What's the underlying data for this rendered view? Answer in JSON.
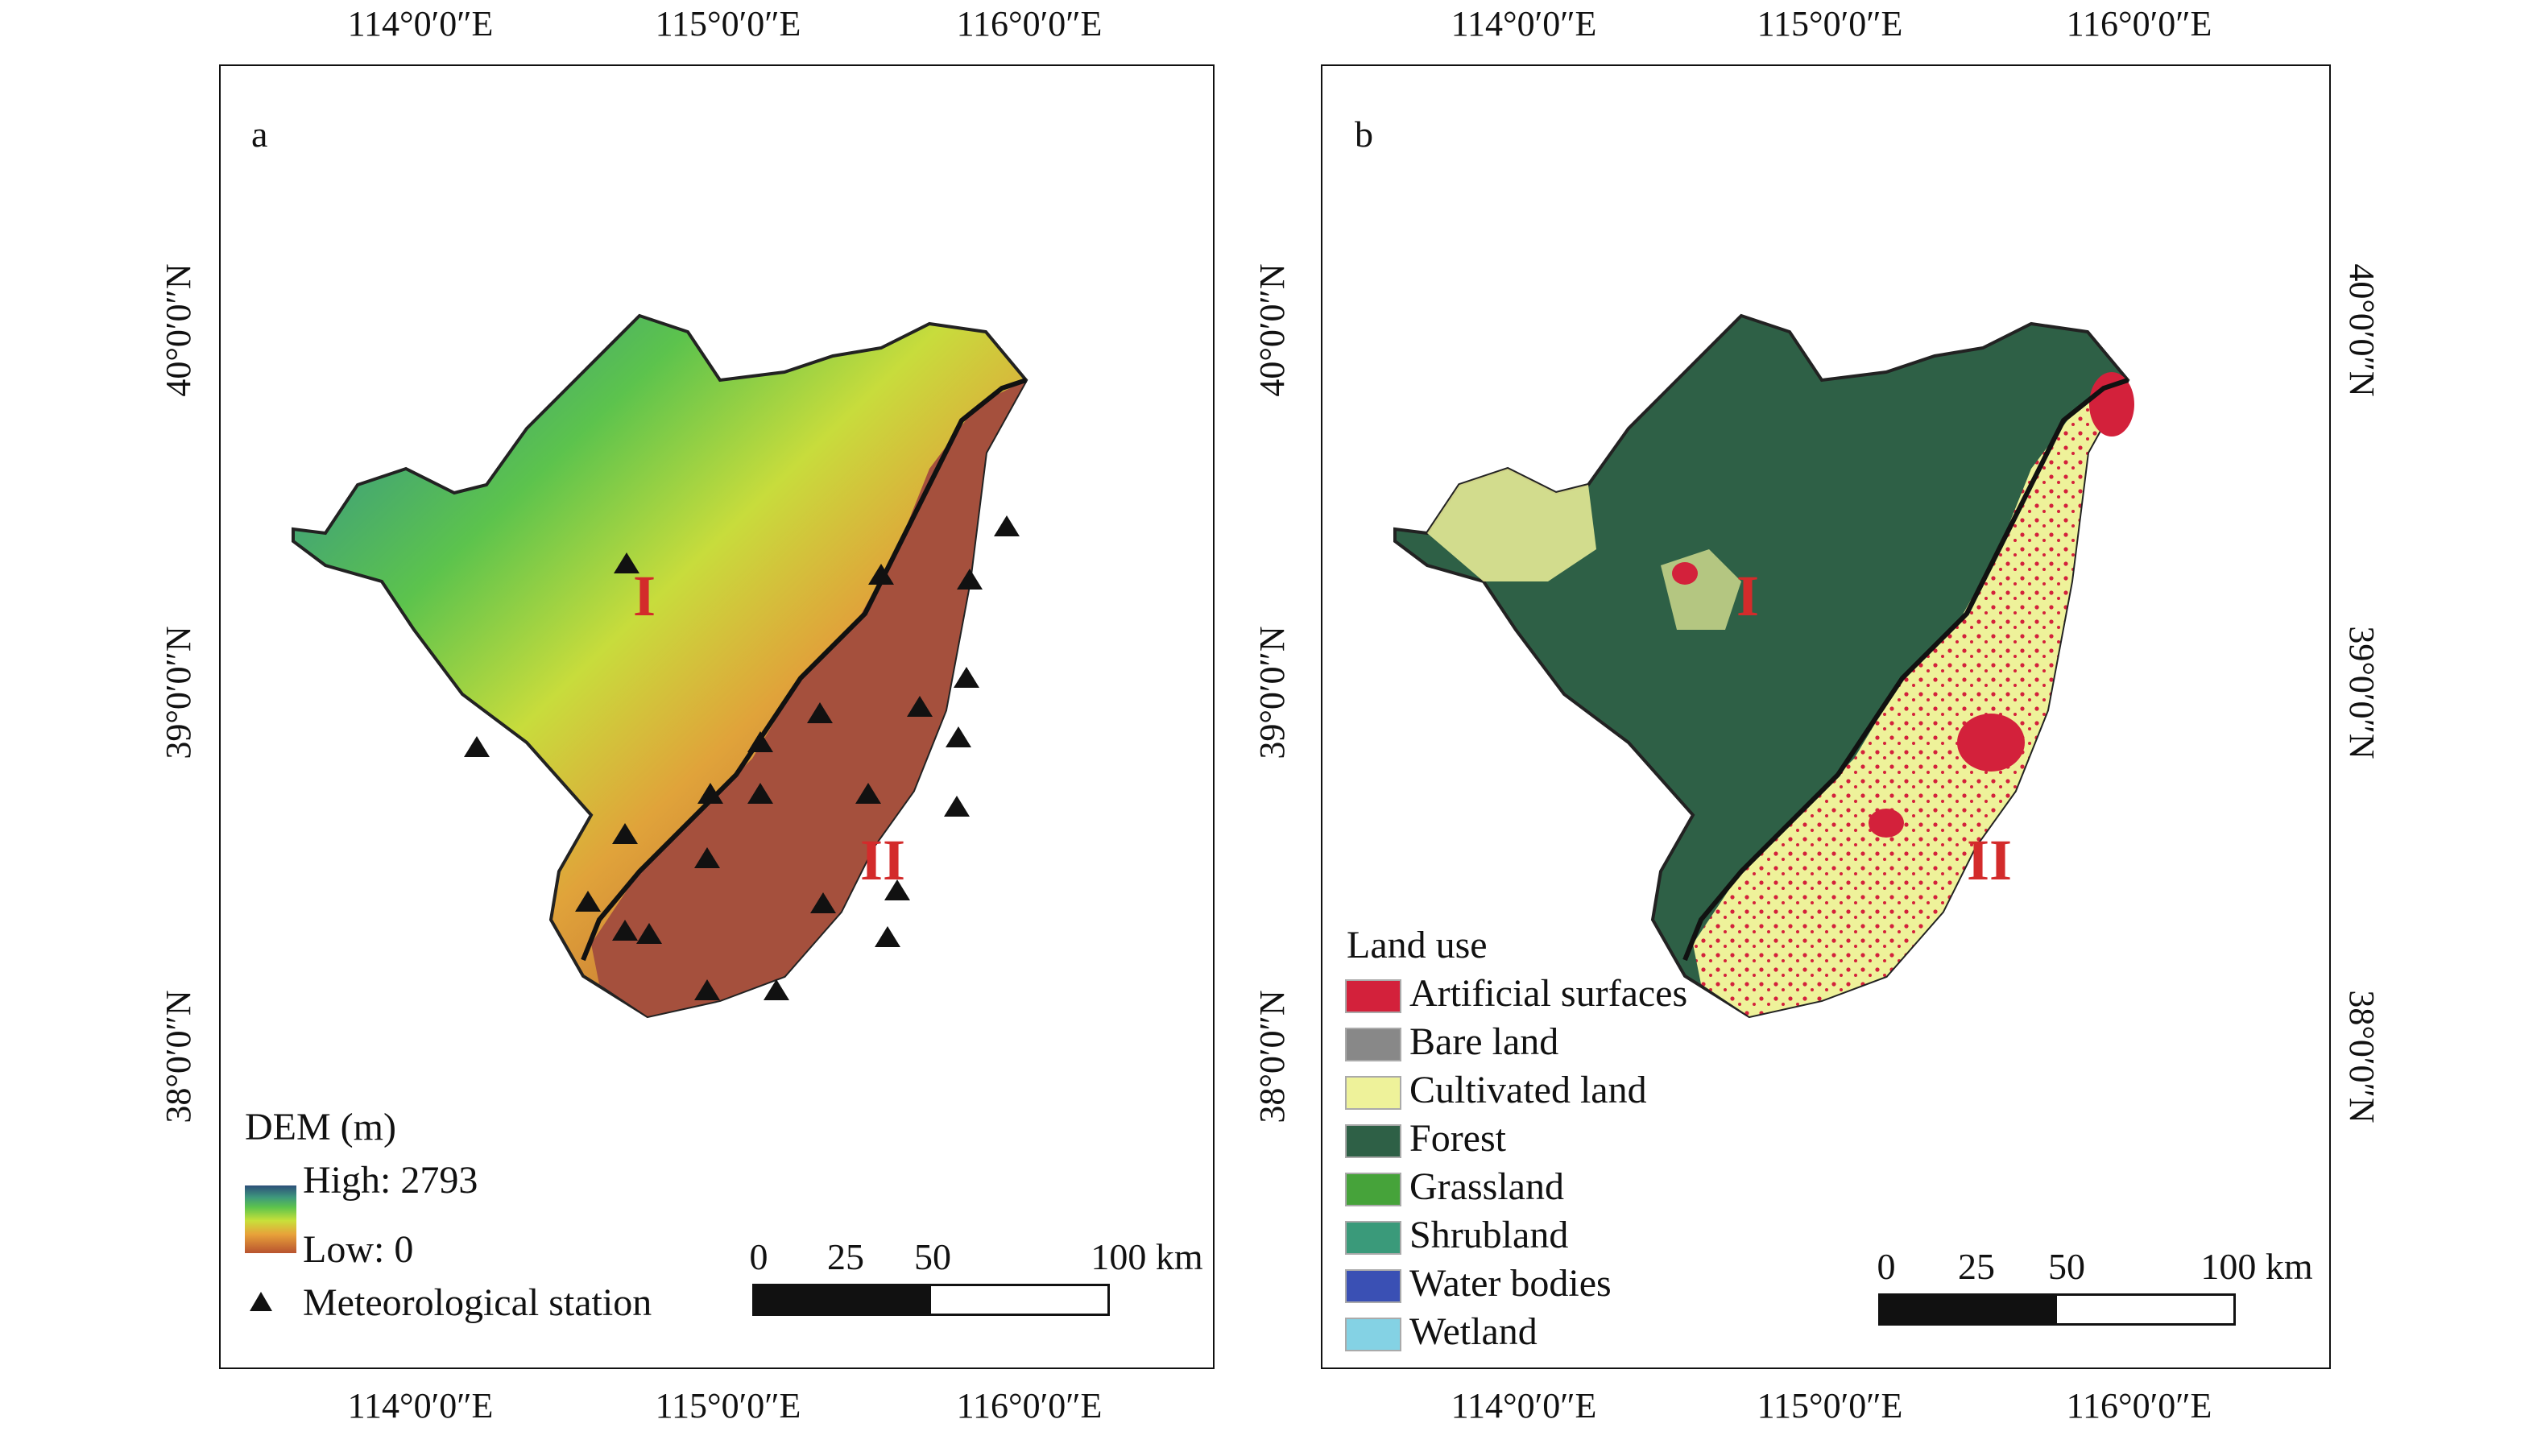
{
  "lon_labels": [
    "114°0′0″E",
    "115°0′0″E",
    "116°0′0″E"
  ],
  "lat_labels": [
    "40°0′0″N",
    "39°0′0″N",
    "38°0′0″N"
  ],
  "panel_a": {
    "label": "a",
    "legend_title": "DEM (m)",
    "high_label": "High: 2793",
    "low_label": "Low: 0",
    "station_label": "Meteorological station",
    "region_1": "I",
    "region_2": "II",
    "scale": [
      "0",
      "25",
      "50",
      "100 km"
    ]
  },
  "panel_b": {
    "label": "b",
    "legend_title": "Land use",
    "region_1": "I",
    "region_2": "II",
    "classes": [
      {
        "name": "Artificial surfaces",
        "color": "#d3213b"
      },
      {
        "name": "Bare land",
        "color": "#888888"
      },
      {
        "name": "Cultivated land",
        "color": "#eef29a"
      },
      {
        "name": "Forest",
        "color": "#2e6046"
      },
      {
        "name": "Grassland",
        "color": "#46a33a"
      },
      {
        "name": "Shrubland",
        "color": "#3a9a7a"
      },
      {
        "name": "Water bodies",
        "color": "#3a50b4"
      },
      {
        "name": "Wetland",
        "color": "#84d2e4"
      }
    ],
    "scale": [
      "0",
      "25",
      "50",
      "100 km"
    ]
  },
  "colors": {
    "dem_mountain": "#56b848",
    "dem_plain": "#a5503d",
    "forest": "#2e6046",
    "cultivated": "#eef29a",
    "artificial": "#d3213b",
    "boundary": "#111111",
    "region_label": "#d32b2b"
  }
}
